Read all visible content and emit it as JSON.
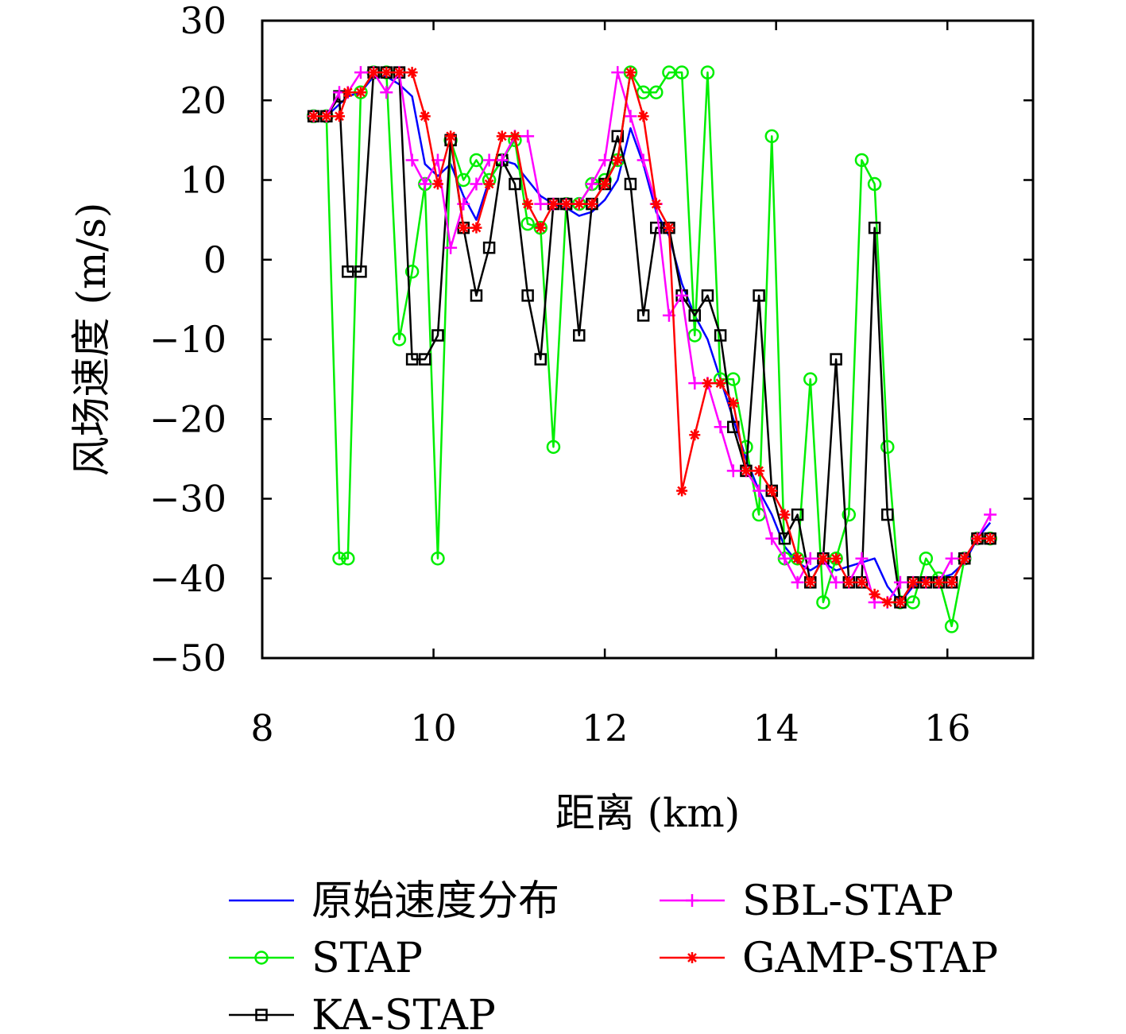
{
  "chart_data": {
    "type": "line",
    "title": "",
    "xlabel": "距离 (km)",
    "ylabel": "风场速度 (m/s)",
    "xlim": [
      8,
      17
    ],
    "ylim": [
      -50,
      30
    ],
    "x_ticks": [
      "8",
      "10",
      "12",
      "14",
      "16"
    ],
    "y_ticks": [
      "30",
      "20",
      "10",
      "0",
      "−10",
      "−20",
      "−30",
      "−40",
      "−50"
    ],
    "legend_position": "bottom",
    "x": [
      8.6,
      8.75,
      8.9,
      9.0,
      9.15,
      9.3,
      9.45,
      9.6,
      9.75,
      9.9,
      10.05,
      10.2,
      10.35,
      10.5,
      10.65,
      10.8,
      10.95,
      11.1,
      11.25,
      11.4,
      11.55,
      11.7,
      11.85,
      12.0,
      12.15,
      12.3,
      12.45,
      12.6,
      12.75,
      12.9,
      13.05,
      13.2,
      13.35,
      13.5,
      13.65,
      13.8,
      13.95,
      14.1,
      14.25,
      14.4,
      14.55,
      14.7,
      14.85,
      15.0,
      15.15,
      15.3,
      15.45,
      15.6,
      15.75,
      15.9,
      16.05,
      16.2,
      16.35,
      16.5
    ],
    "series": [
      {
        "name": "原始速度分布",
        "color": "#0000ff",
        "marker": "none",
        "values": [
          18,
          18,
          19.5,
          20.5,
          21,
          23,
          23,
          22,
          20.5,
          12,
          10.5,
          12,
          8,
          5,
          10,
          12.5,
          12,
          10,
          8,
          7,
          6.5,
          5.5,
          6,
          7.5,
          10,
          16.5,
          12,
          6,
          3,
          -3,
          -7,
          -10,
          -15,
          -20,
          -25,
          -29,
          -32,
          -36,
          -38,
          -39,
          -38,
          -39,
          -38.5,
          -38,
          -37.5,
          -41,
          -43,
          -41,
          -40,
          -40,
          -39.5,
          -38,
          -35,
          -33
        ]
      },
      {
        "name": "STAP",
        "color": "#00ee00",
        "marker": "circle",
        "values": [
          18,
          18,
          -37.5,
          -37.5,
          21,
          23.5,
          23.5,
          -10,
          -1.5,
          9.5,
          -37.5,
          15,
          10,
          12.5,
          10,
          12.5,
          15,
          4.5,
          4,
          -23.5,
          7,
          7,
          9.5,
          10,
          12.5,
          23.5,
          21,
          21,
          23.5,
          23.5,
          -9.5,
          23.5,
          -15,
          -15,
          -23.5,
          -32,
          15.5,
          -37.5,
          -37.5,
          -15,
          -43,
          -37.5,
          -32,
          12.5,
          9.5,
          -23.5,
          -43,
          -43,
          -37.5,
          -40,
          -46,
          -37.5,
          -35,
          -35
        ]
      },
      {
        "name": "KA-STAP",
        "color": "#000000",
        "marker": "square",
        "values": [
          18,
          18,
          20.5,
          -1.5,
          -1.5,
          23.5,
          23.5,
          23.5,
          -12.5,
          -12.5,
          -9.5,
          15,
          4,
          -4.5,
          1.5,
          12.5,
          9.5,
          -4.5,
          -12.5,
          7,
          7,
          -9.5,
          7,
          9.5,
          15.5,
          9.5,
          -7,
          4,
          4,
          -4.5,
          -7,
          -4.5,
          -9.5,
          -21,
          -26.5,
          -4.5,
          -29,
          -35,
          -32,
          -40.5,
          -37.5,
          -12.5,
          -40.5,
          -40.5,
          4,
          -32,
          -43,
          -40.5,
          -40.5,
          -40.5,
          -40.5,
          -37.5,
          -35,
          -35
        ]
      },
      {
        "name": "SBL-STAP",
        "color": "#ff00ff",
        "marker": "plus",
        "values": [
          18,
          18,
          21,
          21,
          23.5,
          23.5,
          21,
          23.5,
          12.5,
          9.5,
          12.5,
          1.5,
          7,
          9.5,
          12.5,
          12.5,
          15.5,
          15.5,
          7,
          7,
          7,
          7,
          9.5,
          12.5,
          23.5,
          18,
          12.5,
          7,
          -7,
          -4.5,
          -15.5,
          -15.5,
          -21,
          -26.5,
          -26.5,
          -29,
          -35,
          -37.5,
          -40.5,
          -37.5,
          -37.5,
          -40.5,
          -40.5,
          -37.5,
          -43,
          -43,
          -40.5,
          -40.5,
          -40.5,
          -40.5,
          -37.5,
          -37.5,
          -35,
          -32
        ]
      },
      {
        "name": "GAMP-STAP",
        "color": "#ff0000",
        "marker": "asterisk",
        "values": [
          18,
          18,
          18,
          21,
          21,
          23.5,
          23.5,
          23.5,
          23.5,
          18,
          9.5,
          15.5,
          4,
          4,
          9.5,
          15.5,
          15.5,
          7,
          4,
          7,
          7,
          7,
          7,
          9.5,
          12.5,
          23.5,
          18,
          7,
          4,
          -29,
          -22,
          -15.5,
          -15.5,
          -18,
          -26.5,
          -26.5,
          -29,
          -32,
          -37.5,
          -40.5,
          -37.5,
          -37.5,
          -40.5,
          -40.5,
          -42,
          -43,
          -43,
          -40.5,
          -40.5,
          -40.5,
          -40.5,
          -37.5,
          -35,
          -35
        ]
      }
    ]
  }
}
